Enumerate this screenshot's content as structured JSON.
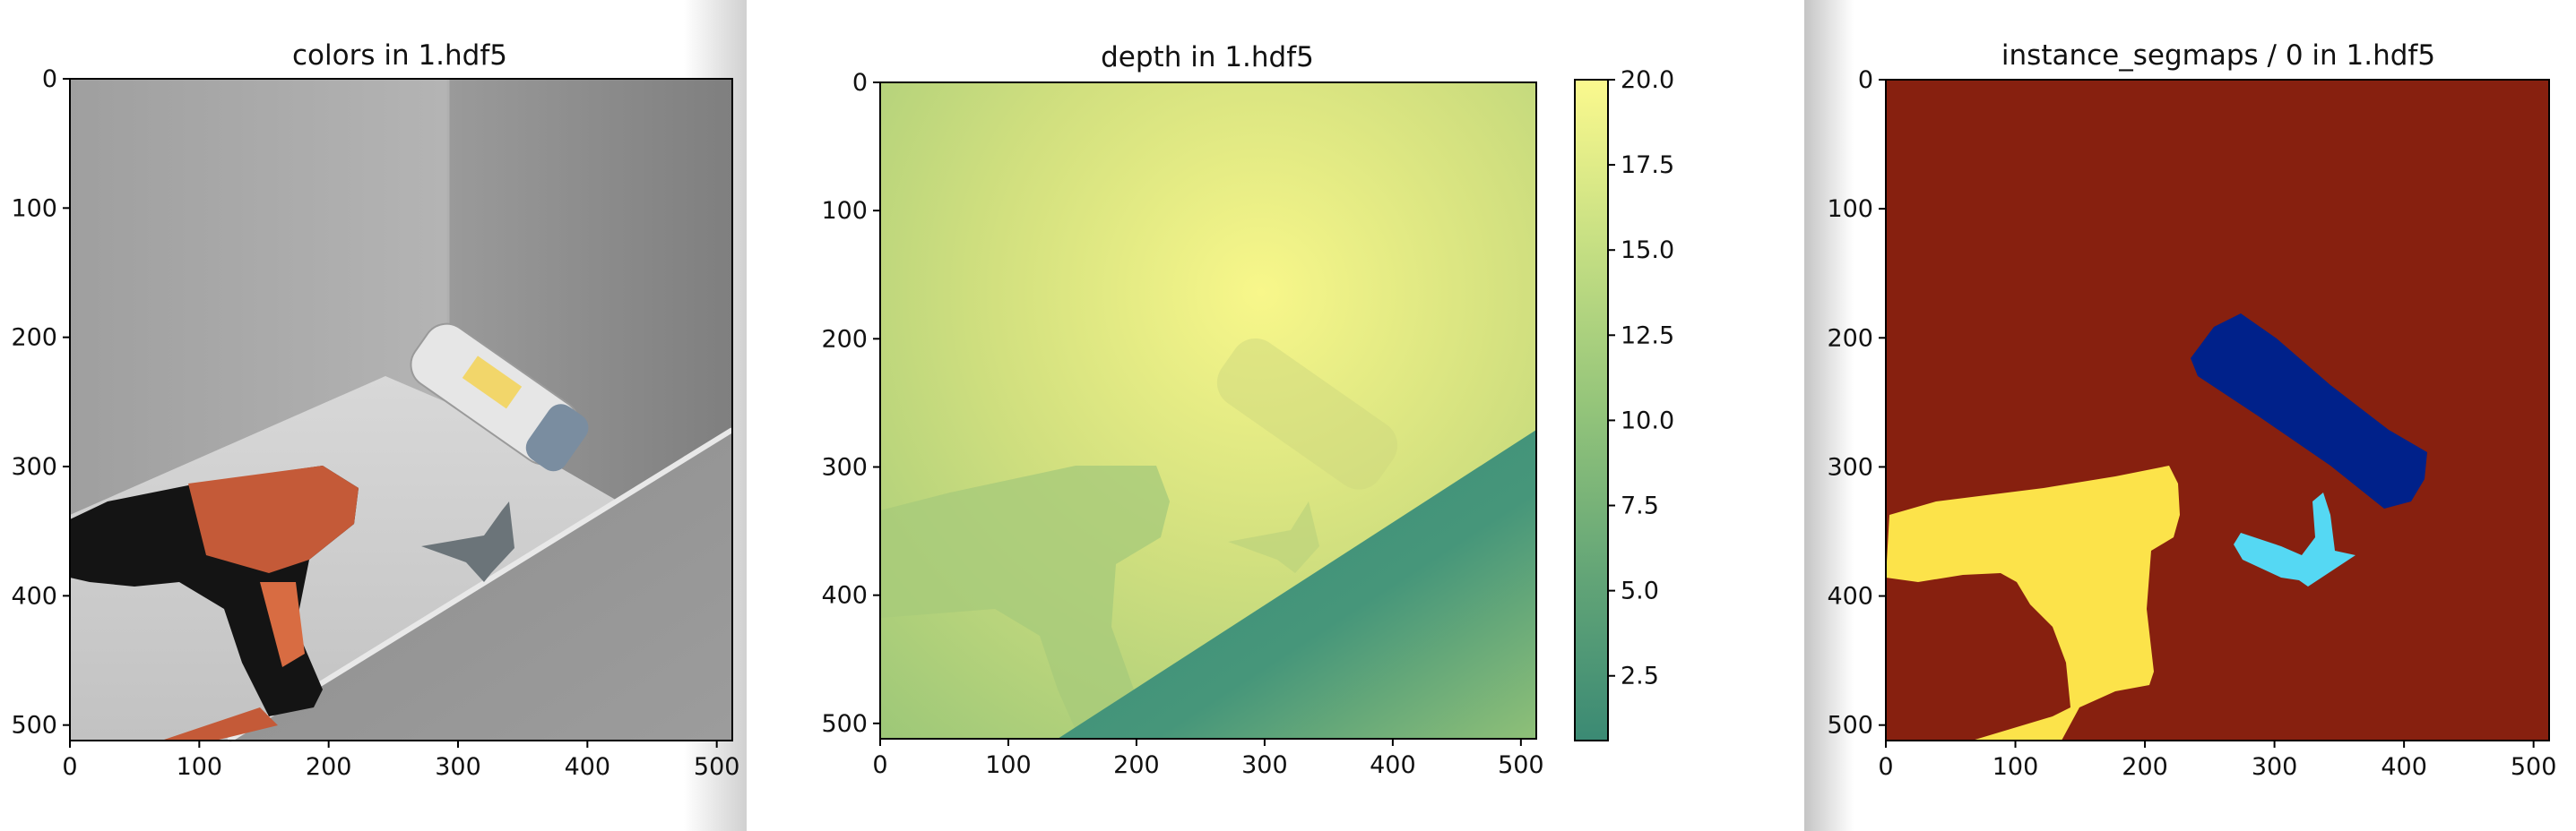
{
  "panels": [
    {
      "title": "colors in 1.hdf5"
    },
    {
      "title": "depth in 1.hdf5"
    },
    {
      "title": "instance_segmaps / 0 in 1.hdf5"
    }
  ],
  "chart_data": [
    {
      "type": "image",
      "title": "colors in 1.hdf5",
      "xlim": [
        0,
        512
      ],
      "ylim": [
        512,
        0
      ],
      "x_ticks": [
        "0",
        "100",
        "200",
        "300",
        "400",
        "500"
      ],
      "y_ticks": [
        "0",
        "100",
        "200",
        "300",
        "400",
        "500"
      ],
      "content": "RGB render: gray wall corner with orange/black cordless drill, shampoo bottle, and small gray clamp on floor"
    },
    {
      "type": "heatmap",
      "title": "depth in 1.hdf5",
      "xlim": [
        0,
        512
      ],
      "ylim": [
        512,
        0
      ],
      "x_ticks": [
        "0",
        "100",
        "200",
        "300",
        "400",
        "500"
      ],
      "y_ticks": [
        "0",
        "100",
        "200",
        "300",
        "400",
        "500"
      ],
      "colormap": "summer-like (teal to yellow)",
      "colorbar": {
        "min": 0.6,
        "max": 20.0,
        "ticks": [
          "2.5",
          "5.0",
          "7.5",
          "10.0",
          "12.5",
          "15.0",
          "17.5",
          "20.0"
        ]
      }
    },
    {
      "type": "heatmap",
      "title": "instance_segmaps / 0 in 1.hdf5",
      "xlim": [
        0,
        512
      ],
      "ylim": [
        512,
        0
      ],
      "x_ticks": [
        "0",
        "100",
        "200",
        "300",
        "400",
        "500"
      ],
      "y_ticks": [
        "0",
        "100",
        "200",
        "300",
        "400",
        "500"
      ],
      "colormap": "jet",
      "regions": [
        {
          "object": "background",
          "color": "#87200f"
        },
        {
          "object": "drill",
          "color": "#fce34a"
        },
        {
          "object": "bottle",
          "color": "#00218a"
        },
        {
          "object": "clamp",
          "color": "#55d8f3"
        }
      ]
    }
  ]
}
